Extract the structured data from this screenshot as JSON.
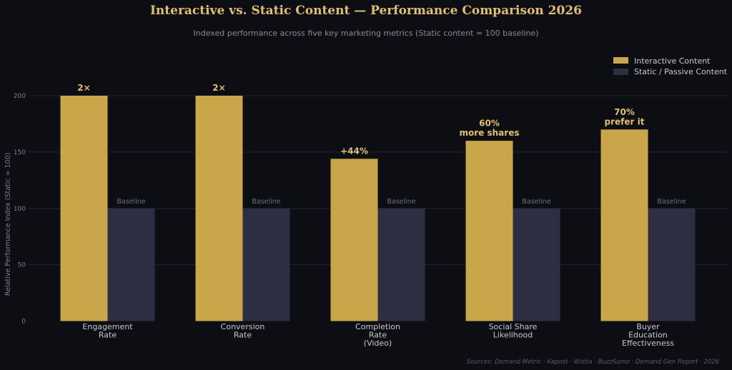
{
  "chart_data": {
    "type": "bar",
    "title": "Interactive vs. Static Content — Performance Comparison 2026",
    "subtitle": "Indexed performance across five key marketing metrics (Static content = 100 baseline)",
    "ylabel": "Relative Performance Index (Static = 100)",
    "xlabel": "",
    "ylim": [
      0,
      200
    ],
    "yticks": [
      0,
      50,
      100,
      150,
      200
    ],
    "grid": true,
    "legend_position": "top-right",
    "categories": [
      [
        "Engagement",
        "Rate"
      ],
      [
        "Conversion",
        "Rate"
      ],
      [
        "Completion",
        "Rate",
        "(Video)"
      ],
      [
        "Social Share",
        "Likelihood"
      ],
      [
        "Buyer",
        "Education",
        "Effectiveness"
      ]
    ],
    "series": [
      {
        "name": "Interactive Content",
        "color": "#c9a64a",
        "values": [
          200,
          200,
          144,
          160,
          170
        ],
        "annotations": [
          [
            "2×"
          ],
          [
            "2×"
          ],
          [
            "+44%"
          ],
          [
            "60%",
            "more shares"
          ],
          [
            "70%",
            "prefer it"
          ]
        ]
      },
      {
        "name": "Static / Passive Content",
        "color": "#2d2e42",
        "values": [
          100,
          100,
          100,
          100,
          100
        ],
        "annotations": [
          [
            "Baseline"
          ],
          [
            "Baseline"
          ],
          [
            "Baseline"
          ],
          [
            "Baseline"
          ],
          [
            "Baseline"
          ]
        ]
      }
    ],
    "source": "Sources: Demand Metric · Kapost · Wistia · BuzzSumo · Demand Gen Report · 2026"
  },
  "colors": {
    "background": "#0d0e13",
    "title": "#e0c070",
    "subtitle": "#8a8b92",
    "grid": "#23252e",
    "tick": "#7d7e86",
    "category": "#c8c8cc",
    "annotation": "#e0c070",
    "baseline_label": "#6f7078",
    "legend_text": "#c8c8cc",
    "source": "#5c5d66"
  }
}
